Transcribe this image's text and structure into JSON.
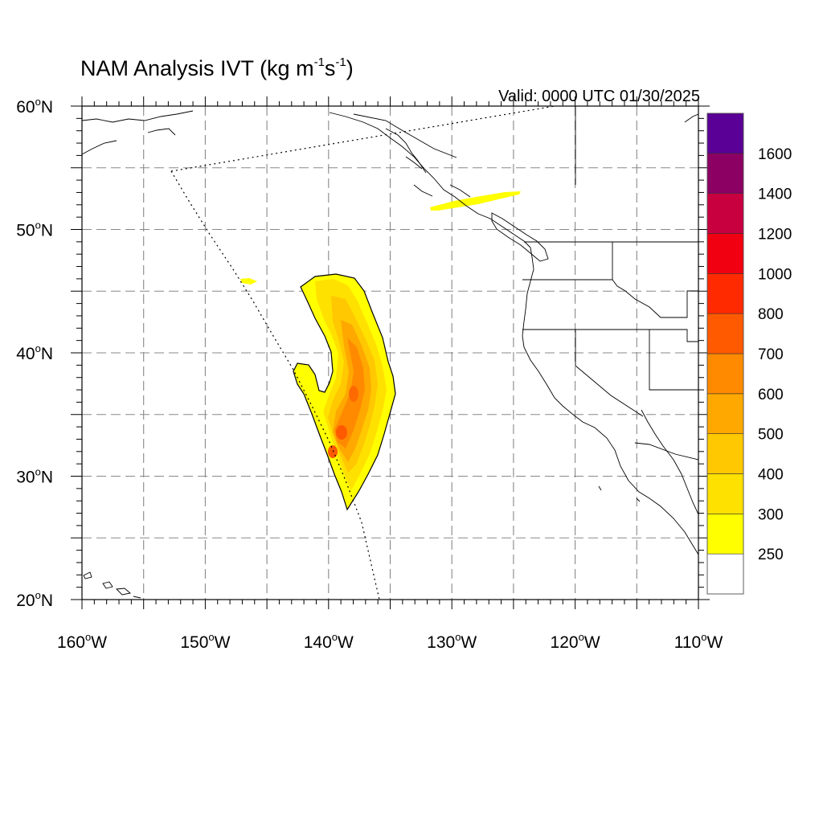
{
  "title": {
    "text": "NAM Analysis IVT (kg m",
    "exp1": "-1",
    "mid": "s",
    "exp2": "-1",
    "close": ")"
  },
  "valid": "Valid: 0000 UTC 01/30/2025",
  "map": {
    "lon_range": [
      -160,
      -110
    ],
    "lat_range": [
      20,
      60
    ],
    "x_ticks": [
      {
        "lon": -160,
        "num": "160",
        "hemi": "W"
      },
      {
        "lon": -150,
        "num": "150",
        "hemi": "W"
      },
      {
        "lon": -140,
        "num": "140",
        "hemi": "W"
      },
      {
        "lon": -130,
        "num": "130",
        "hemi": "W"
      },
      {
        "lon": -120,
        "num": "120",
        "hemi": "W"
      },
      {
        "lon": -110,
        "num": "110",
        "hemi": "W"
      }
    ],
    "y_ticks": [
      {
        "lat": 60,
        "num": "60",
        "hemi": "N"
      },
      {
        "lat": 50,
        "num": "50",
        "hemi": "N"
      },
      {
        "lat": 40,
        "num": "40",
        "hemi": "N"
      },
      {
        "lat": 30,
        "num": "30",
        "hemi": "N"
      },
      {
        "lat": 20,
        "num": "20",
        "hemi": "N"
      }
    ],
    "grid_spacing_deg": 5,
    "grid": true
  },
  "colorbar": {
    "levels": [
      "250",
      "300",
      "400",
      "500",
      "600",
      "700",
      "800",
      "1000",
      "1200",
      "1400",
      "1600"
    ],
    "colors": [
      "#ffffff",
      "#ffff00",
      "#ffe100",
      "#ffc800",
      "#ffa800",
      "#ff8a00",
      "#ff5a00",
      "#ff2a00",
      "#f00010",
      "#c80040",
      "#8c0064",
      "#5a0096"
    ]
  },
  "chart_data": {
    "type": "heatmap",
    "variable": "IVT (kg m-1 s-1)",
    "features": [
      {
        "region": "Northeast Pacific plume (~27–46°N, ~143–136°W)",
        "max_category": "700"
      },
      {
        "region": "British Columbia coast band (~51–53°N, ~132–125°W)",
        "max_category": "250"
      },
      {
        "region": "Small patch (~46°N, ~147°W)",
        "max_category": "250"
      }
    ]
  }
}
